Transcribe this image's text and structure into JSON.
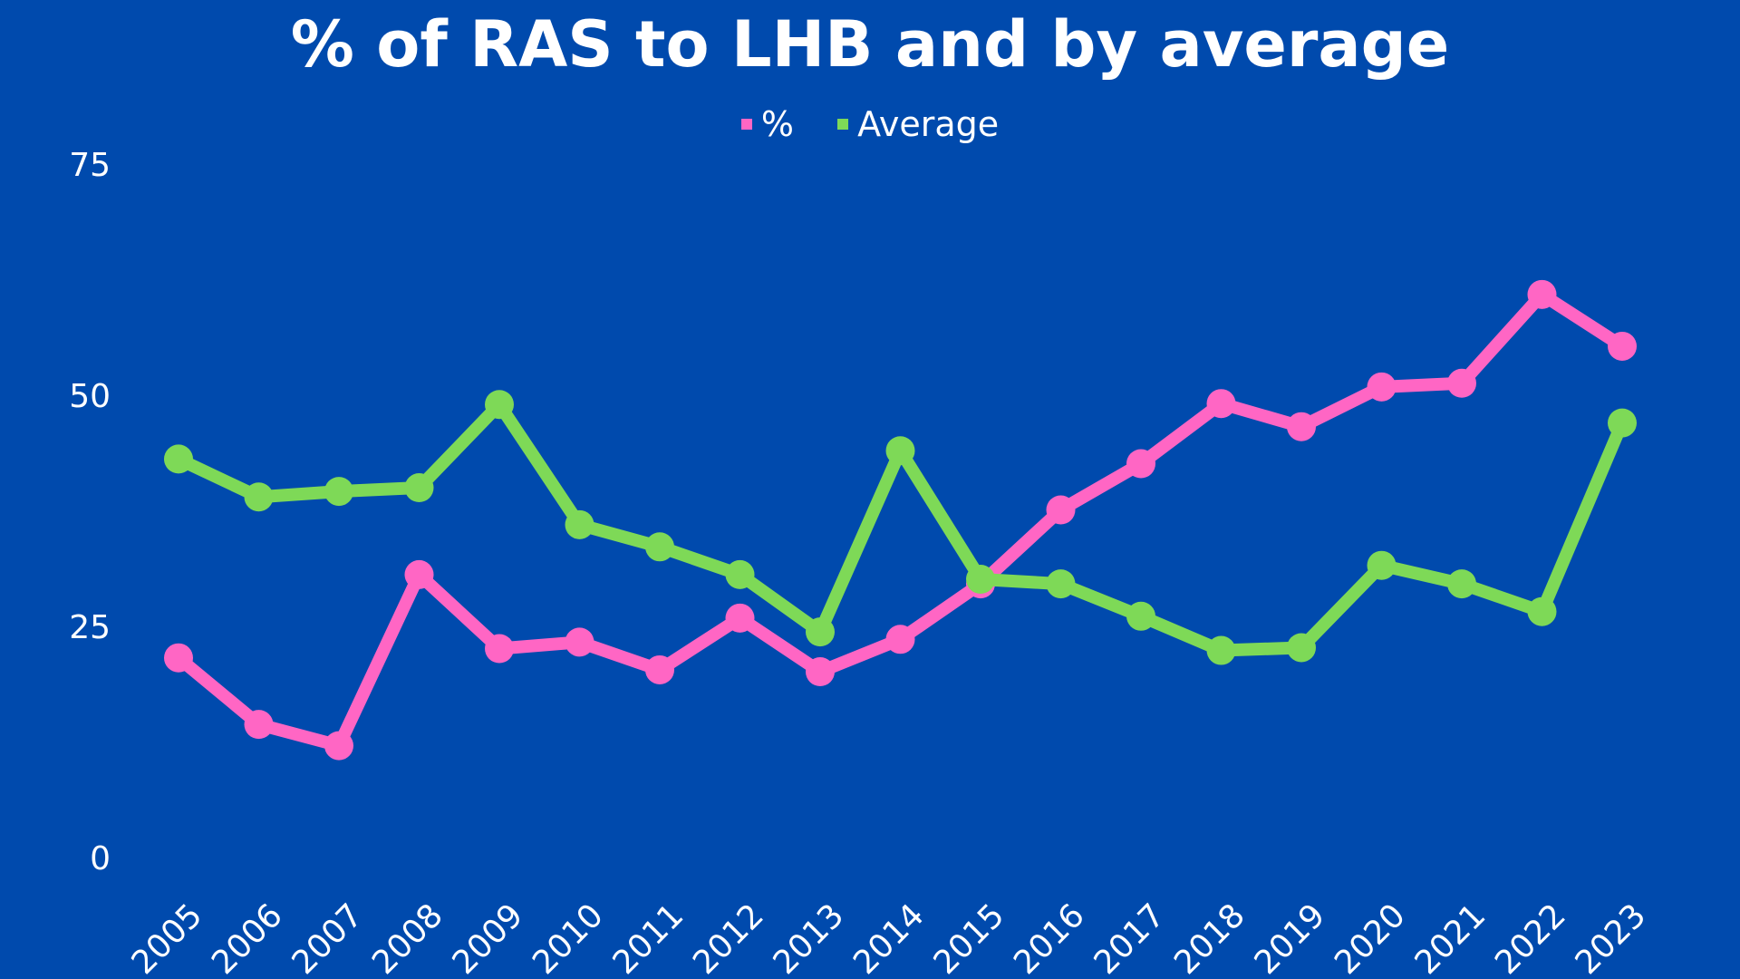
{
  "colors": {
    "background": "#004aad",
    "percent_series": "#ff66c4",
    "average_series": "#7ed957",
    "text": "#ffffff"
  },
  "chart_data": {
    "type": "line",
    "title": "% of RAS to LHB and by average",
    "xlabel": "",
    "ylabel": "",
    "ylim": [
      0,
      75
    ],
    "yticks": [
      "0",
      "25",
      "50",
      "75"
    ],
    "grid": false,
    "legend_position": "top",
    "categories": [
      "2005",
      "2006",
      "2007",
      "2008",
      "2009",
      "2010",
      "2011",
      "2012",
      "2013",
      "2014",
      "2015",
      "2016",
      "2017",
      "2018",
      "2019",
      "2020",
      "2021",
      "2022",
      "2023"
    ],
    "series": [
      {
        "name": "%",
        "color": "#ff66c4",
        "values": [
          21.5,
          14.3,
          12,
          30.5,
          22.5,
          23.2,
          20.2,
          25.8,
          20,
          23.5,
          29.5,
          37.5,
          42.5,
          49,
          46.5,
          50.8,
          51.2,
          60.8,
          55.2
        ]
      },
      {
        "name": "Average",
        "color": "#7ed957",
        "values": [
          43,
          38.9,
          39.5,
          39.9,
          48.9,
          35.9,
          33.5,
          30.5,
          24.3,
          43.9,
          30,
          29.5,
          26,
          22.3,
          22.6,
          31.5,
          29.5,
          26.5,
          46.9
        ]
      }
    ]
  }
}
